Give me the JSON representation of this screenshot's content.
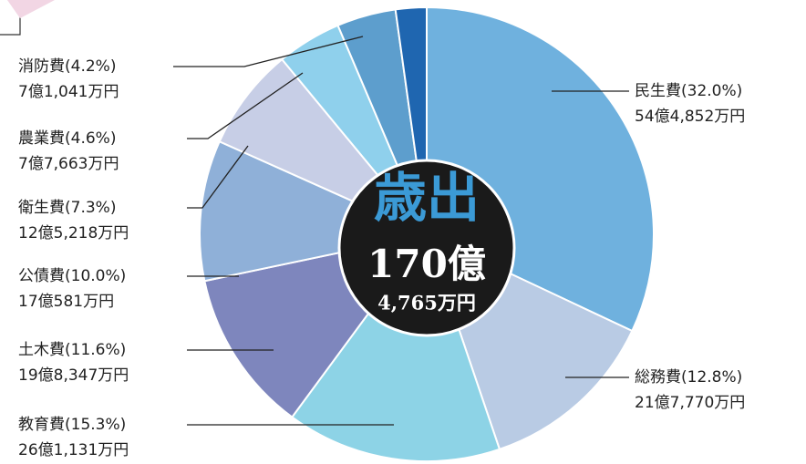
{
  "chart_data": {
    "type": "pie",
    "center_label": [
      "歳出",
      "170億",
      "4,765万円"
    ],
    "categories": [
      "民生費(32.0%)",
      "総務費(12.8%)",
      "教育費(15.3%)",
      "土木費(11.6%)",
      "公債費(10.0%)",
      "衛生費(7.3%)",
      "農業費(4.6%)",
      "消防費(4.2%)",
      null
    ],
    "values": [
      32.0,
      12.8,
      15.3,
      11.6,
      10.0,
      7.3,
      4.6,
      4.2,
      2.2
    ],
    "value_labels": [
      "54億4,852万円",
      "21億7,770万円",
      "26億1,131万円",
      "19億8,347万円",
      "17億581万円",
      "12億5,218万円",
      "7億7,663万円",
      "7億1,041万円",
      null
    ],
    "colors": [
      "#6fb1de",
      "#b9cbe4",
      "#8dd3e6",
      "#7e86bd",
      "#8fb0d8",
      "#c7cee6",
      "#8fd0ec",
      "#5d9ecd",
      "#1f66b0"
    ]
  }
}
